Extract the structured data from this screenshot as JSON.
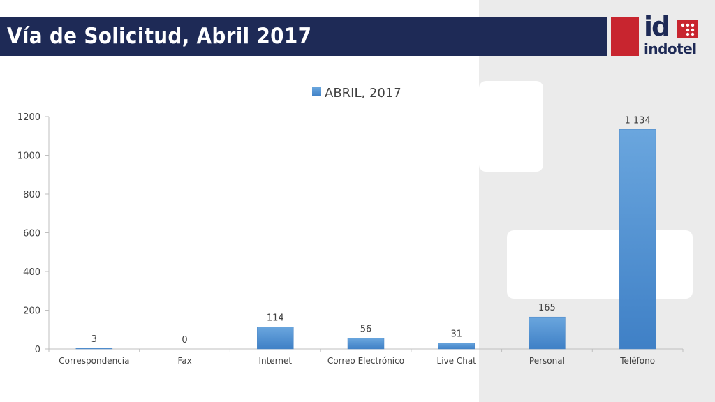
{
  "slide": {
    "title": "Vía de Solicitud, Abril 2017"
  },
  "logo": {
    "mark": "id",
    "name": "indotel",
    "colors": {
      "navy": "#1e2a56",
      "red": "#c8252f"
    }
  },
  "colors": {
    "bar": "#5b9bd5",
    "bar_dark": "#3f7fc4",
    "title_bar": "#1e2a56",
    "axis_text": "#404040"
  },
  "chart_data": {
    "type": "bar",
    "title": "",
    "categories": [
      "Correspondencia",
      "Fax",
      "Internet",
      "Correo Electrónico",
      "Live Chat",
      "Personal",
      "Teléfono"
    ],
    "series": [
      {
        "name": "ABRIL, 2017",
        "values": [
          3,
          0,
          114,
          56,
          31,
          165,
          1134
        ],
        "value_labels": [
          "3",
          "0",
          "114",
          "56",
          "31",
          "165",
          "1 134"
        ]
      }
    ],
    "y_ticks": [
      0,
      200,
      400,
      600,
      800,
      1000,
      1200
    ],
    "ylim": [
      0,
      1200
    ],
    "grid": false,
    "legend": "top-center",
    "xlabel": "",
    "ylabel": ""
  }
}
